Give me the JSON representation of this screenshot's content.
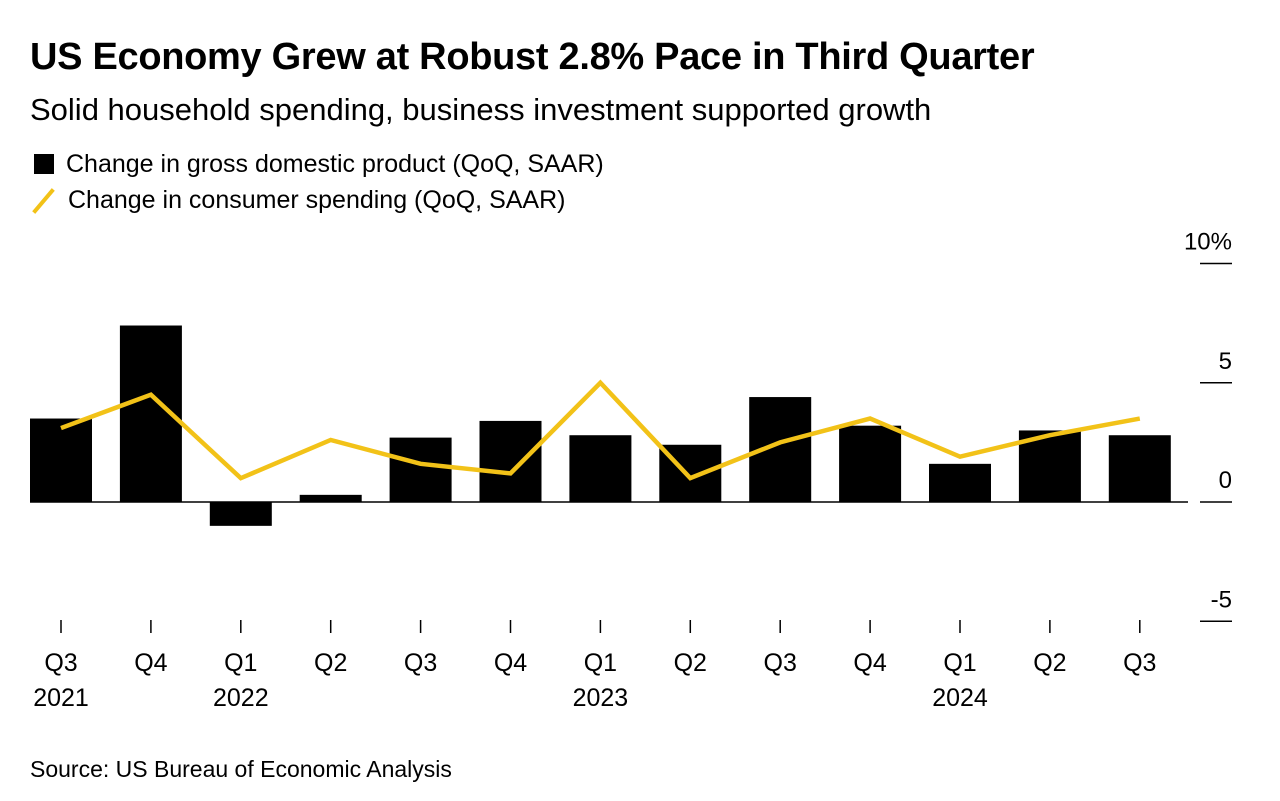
{
  "header": {
    "title": "US Economy Grew at Robust 2.8% Pace in Third Quarter",
    "subtitle": "Solid household spending, business investment supported growth"
  },
  "legend": {
    "bar_label": "Change in gross domestic product (QoQ, SAAR)",
    "line_label": "Change in consumer spending (QoQ, SAAR)"
  },
  "footer": {
    "source": "Source: US Bureau of Economic Analysis"
  },
  "colors": {
    "bar": "#000000",
    "line": "#F2C218",
    "axis": "#000000"
  },
  "chart_data": {
    "type": "bar",
    "categories": [
      "Q3 2021",
      "Q4 2021",
      "Q1 2022",
      "Q2 2022",
      "Q3 2022",
      "Q4 2022",
      "Q1 2023",
      "Q2 2023",
      "Q3 2023",
      "Q4 2023",
      "Q1 2024",
      "Q2 2024",
      "Q3 2024"
    ],
    "x_tick_labels": [
      "Q3",
      "Q4",
      "Q1",
      "Q2",
      "Q3",
      "Q4",
      "Q1",
      "Q2",
      "Q3",
      "Q4",
      "Q1",
      "Q2",
      "Q3"
    ],
    "x_year_labels": [
      "2021",
      "",
      "2022",
      "",
      "",
      "",
      "2023",
      "",
      "",
      "",
      "2024",
      "",
      ""
    ],
    "series": [
      {
        "name": "Change in gross domestic product (QoQ, SAAR)",
        "type": "bar",
        "values": [
          3.5,
          7.4,
          -1.0,
          0.3,
          2.7,
          3.4,
          2.8,
          2.4,
          4.4,
          3.2,
          1.6,
          3.0,
          2.8
        ]
      },
      {
        "name": "Change in consumer spending (QoQ, SAAR)",
        "type": "line",
        "values": [
          3.1,
          4.5,
          1.0,
          2.6,
          1.6,
          1.2,
          5.0,
          1.0,
          2.5,
          3.5,
          1.9,
          2.8,
          3.5
        ]
      }
    ],
    "y_ticks": [
      10,
      5,
      0,
      -5
    ],
    "y_tick_labels": [
      "10%",
      "5",
      "0",
      "-5"
    ],
    "ylim": [
      -5,
      10
    ],
    "ylabel": "",
    "xlabel": "",
    "grid": false,
    "y_axis_position": "right",
    "legend_position": "top-left"
  }
}
